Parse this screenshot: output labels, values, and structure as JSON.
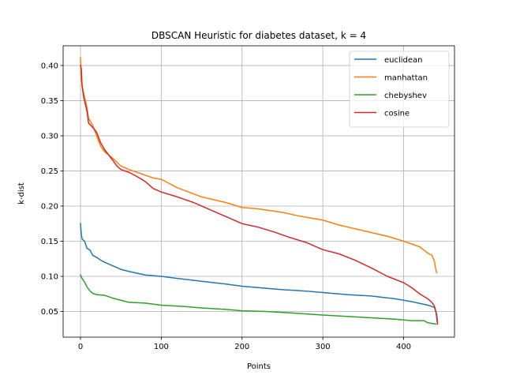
{
  "chart_data": {
    "type": "line",
    "title": "DBSCAN Heuristic for diabetes dataset, k = 4",
    "xlabel": "Points",
    "ylabel": "k-dist",
    "xlim": [
      -21.5,
      463
    ],
    "ylim": [
      0.0135,
      0.428
    ],
    "xticks": [
      0,
      100,
      200,
      300,
      400
    ],
    "yticks": [
      0.05,
      0.1,
      0.15,
      0.2,
      0.25,
      0.3,
      0.35,
      0.4
    ],
    "ytick_labels": [
      "0.05",
      "0.10",
      "0.15",
      "0.20",
      "0.25",
      "0.30",
      "0.35",
      "0.40"
    ],
    "grid": true,
    "legend_position": "upper right",
    "series": [
      {
        "name": "euclidean",
        "color": "#1f77b4",
        "points": [
          [
            0,
            0.175
          ],
          [
            1,
            0.16
          ],
          [
            2,
            0.153
          ],
          [
            5,
            0.15
          ],
          [
            8,
            0.14
          ],
          [
            12,
            0.137
          ],
          [
            15,
            0.13
          ],
          [
            20,
            0.127
          ],
          [
            25,
            0.123
          ],
          [
            30,
            0.12
          ],
          [
            40,
            0.115
          ],
          [
            50,
            0.11
          ],
          [
            60,
            0.107
          ],
          [
            80,
            0.102
          ],
          [
            100,
            0.1
          ],
          [
            120,
            0.097
          ],
          [
            150,
            0.093
          ],
          [
            180,
            0.089
          ],
          [
            200,
            0.086
          ],
          [
            220,
            0.084
          ],
          [
            250,
            0.081
          ],
          [
            280,
            0.079
          ],
          [
            300,
            0.077
          ],
          [
            330,
            0.074
          ],
          [
            360,
            0.072
          ],
          [
            390,
            0.068
          ],
          [
            410,
            0.064
          ],
          [
            430,
            0.059
          ],
          [
            438,
            0.056
          ],
          [
            441,
            0.046
          ],
          [
            442,
            0.035
          ]
        ]
      },
      {
        "name": "manhattan",
        "color": "#ff7f0e",
        "points": [
          [
            0,
            0.411
          ],
          [
            1,
            0.38
          ],
          [
            3,
            0.365
          ],
          [
            5,
            0.355
          ],
          [
            8,
            0.34
          ],
          [
            10,
            0.325
          ],
          [
            15,
            0.315
          ],
          [
            20,
            0.3
          ],
          [
            25,
            0.285
          ],
          [
            30,
            0.277
          ],
          [
            40,
            0.268
          ],
          [
            50,
            0.257
          ],
          [
            60,
            0.252
          ],
          [
            75,
            0.246
          ],
          [
            90,
            0.24
          ],
          [
            100,
            0.238
          ],
          [
            120,
            0.226
          ],
          [
            150,
            0.213
          ],
          [
            180,
            0.205
          ],
          [
            200,
            0.198
          ],
          [
            220,
            0.196
          ],
          [
            250,
            0.191
          ],
          [
            270,
            0.186
          ],
          [
            300,
            0.18
          ],
          [
            320,
            0.173
          ],
          [
            350,
            0.165
          ],
          [
            380,
            0.157
          ],
          [
            400,
            0.15
          ],
          [
            420,
            0.142
          ],
          [
            430,
            0.133
          ],
          [
            435,
            0.13
          ],
          [
            438,
            0.122
          ],
          [
            440,
            0.109
          ],
          [
            441,
            0.105
          ]
        ]
      },
      {
        "name": "chebyshev",
        "color": "#2ca02c",
        "points": [
          [
            0,
            0.102
          ],
          [
            2,
            0.097
          ],
          [
            5,
            0.092
          ],
          [
            8,
            0.085
          ],
          [
            12,
            0.079
          ],
          [
            15,
            0.076
          ],
          [
            20,
            0.074
          ],
          [
            30,
            0.073
          ],
          [
            40,
            0.069
          ],
          [
            50,
            0.066
          ],
          [
            60,
            0.063
          ],
          [
            80,
            0.062
          ],
          [
            100,
            0.059
          ],
          [
            130,
            0.057
          ],
          [
            150,
            0.055
          ],
          [
            180,
            0.053
          ],
          [
            200,
            0.051
          ],
          [
            230,
            0.05
          ],
          [
            260,
            0.048
          ],
          [
            300,
            0.045
          ],
          [
            330,
            0.043
          ],
          [
            360,
            0.041
          ],
          [
            390,
            0.039
          ],
          [
            410,
            0.037
          ],
          [
            425,
            0.037
          ],
          [
            430,
            0.034
          ],
          [
            440,
            0.032
          ]
        ]
      },
      {
        "name": "cosine",
        "color": "#d62728",
        "points": [
          [
            0,
            0.4
          ],
          [
            1,
            0.395
          ],
          [
            2,
            0.37
          ],
          [
            4,
            0.355
          ],
          [
            6,
            0.345
          ],
          [
            8,
            0.335
          ],
          [
            10,
            0.318
          ],
          [
            15,
            0.312
          ],
          [
            20,
            0.305
          ],
          [
            25,
            0.29
          ],
          [
            30,
            0.28
          ],
          [
            40,
            0.265
          ],
          [
            45,
            0.257
          ],
          [
            50,
            0.252
          ],
          [
            60,
            0.248
          ],
          [
            70,
            0.242
          ],
          [
            80,
            0.235
          ],
          [
            90,
            0.225
          ],
          [
            100,
            0.22
          ],
          [
            120,
            0.213
          ],
          [
            140,
            0.205
          ],
          [
            160,
            0.195
          ],
          [
            180,
            0.185
          ],
          [
            200,
            0.175
          ],
          [
            220,
            0.17
          ],
          [
            240,
            0.163
          ],
          [
            260,
            0.155
          ],
          [
            280,
            0.148
          ],
          [
            300,
            0.138
          ],
          [
            320,
            0.132
          ],
          [
            340,
            0.123
          ],
          [
            360,
            0.112
          ],
          [
            380,
            0.1
          ],
          [
            400,
            0.091
          ],
          [
            410,
            0.084
          ],
          [
            420,
            0.075
          ],
          [
            430,
            0.068
          ],
          [
            435,
            0.063
          ],
          [
            438,
            0.058
          ],
          [
            440,
            0.05
          ],
          [
            442,
            0.032
          ]
        ]
      }
    ]
  }
}
